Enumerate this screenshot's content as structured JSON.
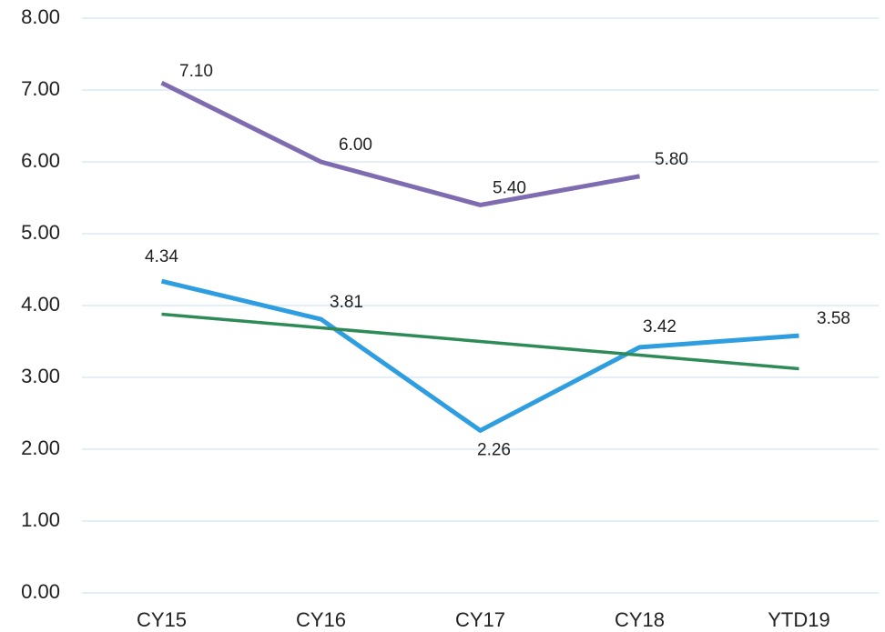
{
  "chart_data": {
    "type": "line",
    "categories": [
      "CY15",
      "CY16",
      "CY17",
      "CY18",
      "YTD19"
    ],
    "series": [
      {
        "color": "#7f6bb0",
        "values": [
          7.1,
          6.0,
          5.4,
          5.8,
          null
        ],
        "value_labels": [
          "7.10",
          "6.00",
          "5.40",
          "5.80",
          null
        ]
      },
      {
        "color": "#2e9ee0",
        "values": [
          4.34,
          3.81,
          2.26,
          3.42,
          3.58
        ],
        "value_labels": [
          "4.34",
          "3.81",
          "2.26",
          "3.42",
          "3.58"
        ]
      },
      {
        "color": "#2e8b57",
        "values": [
          3.88,
          3.69,
          3.5,
          3.31,
          3.12
        ]
      }
    ],
    "ylim": [
      0,
      8
    ],
    "yticks": [
      {
        "value": 0,
        "label": "0.00"
      },
      {
        "value": 1,
        "label": "1.00"
      },
      {
        "value": 2,
        "label": "2.00"
      },
      {
        "value": 3,
        "label": "3.00"
      },
      {
        "value": 4,
        "label": "4.00"
      },
      {
        "value": 5,
        "label": "5.00"
      },
      {
        "value": 6,
        "label": "6.00"
      },
      {
        "value": 7,
        "label": "7.00"
      },
      {
        "value": 8,
        "label": "8.00"
      }
    ],
    "grid": true
  }
}
